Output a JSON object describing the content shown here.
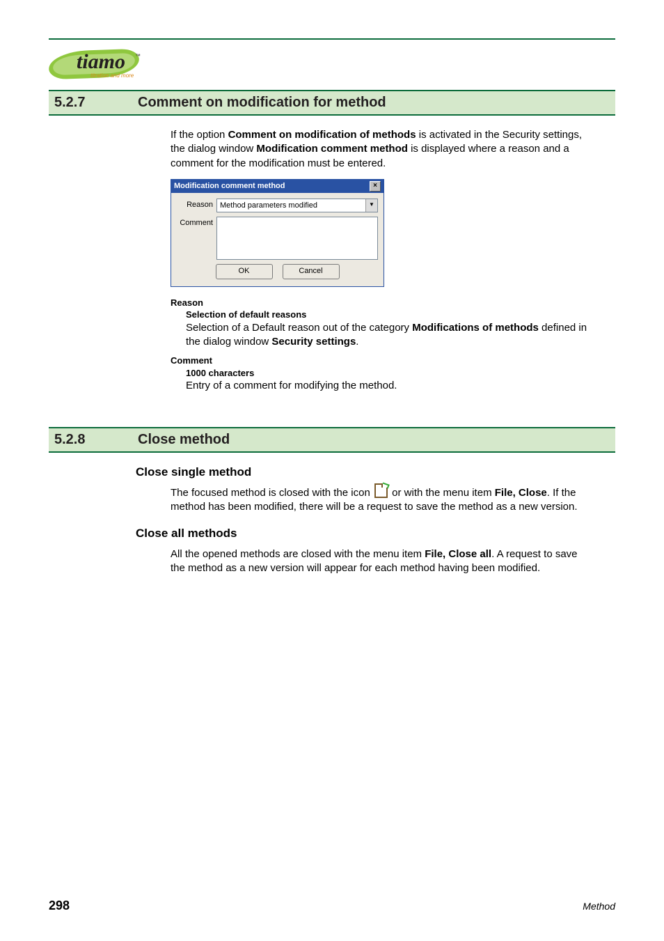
{
  "logo": {
    "text": "tiamo",
    "tm": "™",
    "sub": "titration and more"
  },
  "section1": {
    "num": "5.2.7",
    "title": "Comment on modification for method",
    "intro_pre": "If the option ",
    "intro_b1": "Comment on modification of methods",
    "intro_mid": " is activated in the Security settings, the dialog window ",
    "intro_b2": "Modification comment method",
    "intro_post": " is displayed where a reason and a comment for the modification must be entered."
  },
  "dialog": {
    "title": "Modification comment method",
    "close": "×",
    "reason_label": "Reason",
    "reason_value": "Method parameters modified",
    "dropdown_glyph": "▼",
    "comment_label": "Comment",
    "ok": "OK",
    "cancel": "Cancel"
  },
  "term_reason": {
    "label": "Reason",
    "sub": "Selection of default reasons",
    "body_pre": "Selection of a Default reason out of the category ",
    "body_b1": "Modifications of methods",
    "body_mid": " defined in the dialog window ",
    "body_b2": "Security settings",
    "body_post": "."
  },
  "term_comment": {
    "label": "Comment",
    "sub": "1000 characters",
    "body": "Entry of a comment for modifying the method."
  },
  "section2": {
    "num": "5.2.8",
    "title": "Close method"
  },
  "close_single": {
    "heading": "Close single method",
    "p_pre": "The focused method is closed with the icon ",
    "p_mid": " or with the menu item ",
    "p_b": "File, Close",
    "p_post": ". If the method has been modified, there will be a request to save the method as a new version."
  },
  "close_all": {
    "heading": "Close all methods",
    "p_pre": "All the opened methods are closed with the menu item ",
    "p_b": "File, Close all",
    "p_post": ". A request to save the method as a new version will appear for each method having been modified."
  },
  "footer": {
    "page": "298",
    "right": "Method"
  }
}
